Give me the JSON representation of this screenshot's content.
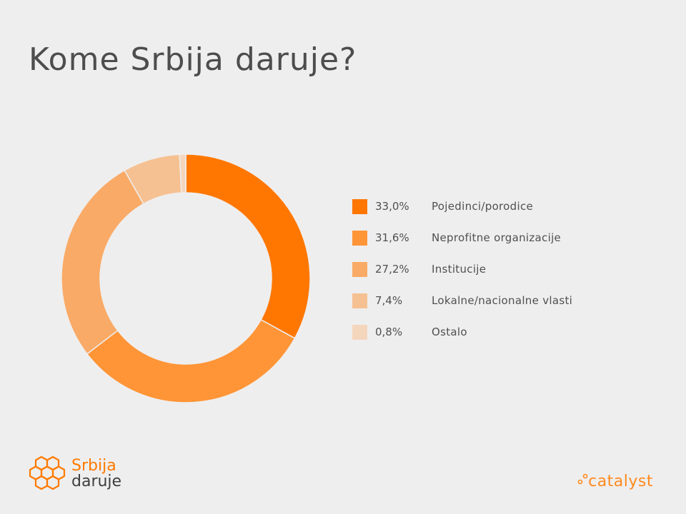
{
  "title": "Kome Srbija daruje?",
  "chart_data": {
    "type": "pie",
    "categories": [
      "Pojedinci/porodice",
      "Neprofitne organizacije",
      "Institucije",
      "Lokalne/nacionalne vlasti",
      "Ostalo"
    ],
    "values": [
      33.0,
      31.6,
      27.2,
      7.4,
      0.8
    ],
    "value_labels": [
      "33,0%",
      "31,6%",
      "27,2%",
      "7,4%",
      "0,8%"
    ],
    "colors": [
      "#ff7700",
      "#ff9537",
      "#f9aa66",
      "#f6c192",
      "#f4d6bd"
    ],
    "legend_position": "right",
    "style": "donut"
  },
  "branding": {
    "left_line1": "Srbija",
    "left_line2": "daruje",
    "right": "catalyst"
  }
}
